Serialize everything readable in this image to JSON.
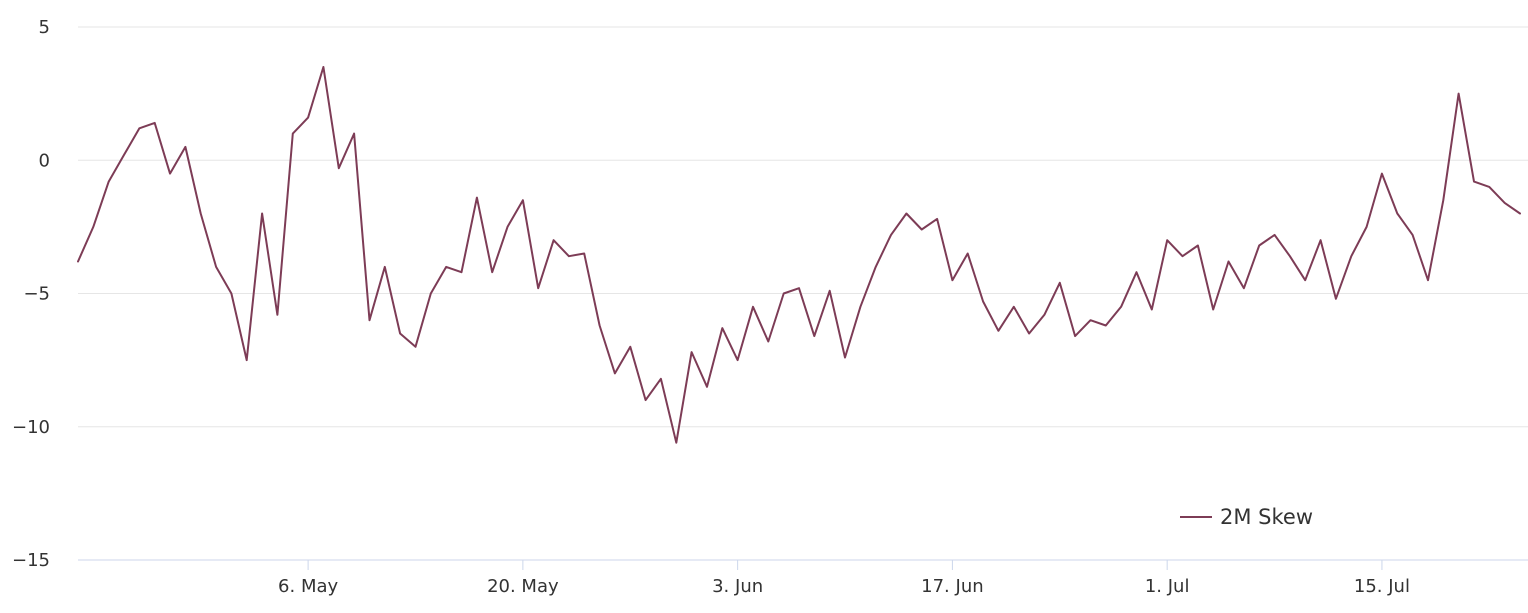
{
  "chart_data": {
    "type": "line",
    "title": "",
    "xlabel": "",
    "ylabel": "",
    "x_range": [
      "2024-04-21",
      "2024-07-24"
    ],
    "ylim": [
      -15,
      5
    ],
    "y_ticks": [
      5,
      0,
      -5,
      -10,
      -15
    ],
    "y_tick_labels": [
      "5",
      "0",
      "−5",
      "−10",
      "−15"
    ],
    "x_ticks": [
      {
        "date": "2024-05-06",
        "label": "6. May"
      },
      {
        "date": "2024-05-20",
        "label": "20. May"
      },
      {
        "date": "2024-06-03",
        "label": "3. Jun"
      },
      {
        "date": "2024-06-17",
        "label": "17. Jun"
      },
      {
        "date": "2024-07-01",
        "label": "1. Jul"
      },
      {
        "date": "2024-07-15",
        "label": "15. Jul"
      }
    ],
    "grid": true,
    "legend": {
      "position": "bottom-right"
    },
    "series": [
      {
        "name": "2M Skew",
        "color": "#7d3c56",
        "points": [
          [
            "2024-04-21",
            -3.8
          ],
          [
            "2024-04-22",
            -2.5
          ],
          [
            "2024-04-23",
            -0.8
          ],
          [
            "2024-04-24",
            0.2
          ],
          [
            "2024-04-25",
            1.2
          ],
          [
            "2024-04-26",
            1.4
          ],
          [
            "2024-04-27",
            -0.5
          ],
          [
            "2024-04-28",
            0.5
          ],
          [
            "2024-04-29",
            -2.0
          ],
          [
            "2024-04-30",
            -4.0
          ],
          [
            "2024-05-01",
            -5.0
          ],
          [
            "2024-05-02",
            -7.5
          ],
          [
            "2024-05-03",
            -2.0
          ],
          [
            "2024-05-04",
            -5.8
          ],
          [
            "2024-05-05",
            1.0
          ],
          [
            "2024-05-06",
            1.6
          ],
          [
            "2024-05-07",
            3.5
          ],
          [
            "2024-05-08",
            -0.3
          ],
          [
            "2024-05-09",
            1.0
          ],
          [
            "2024-05-10",
            -6.0
          ],
          [
            "2024-05-11",
            -4.0
          ],
          [
            "2024-05-12",
            -6.5
          ],
          [
            "2024-05-13",
            -7.0
          ],
          [
            "2024-05-14",
            -5.0
          ],
          [
            "2024-05-15",
            -4.0
          ],
          [
            "2024-05-16",
            -4.2
          ],
          [
            "2024-05-17",
            -1.4
          ],
          [
            "2024-05-18",
            -4.2
          ],
          [
            "2024-05-19",
            -2.5
          ],
          [
            "2024-05-20",
            -1.5
          ],
          [
            "2024-05-21",
            -4.8
          ],
          [
            "2024-05-22",
            -3.0
          ],
          [
            "2024-05-23",
            -3.6
          ],
          [
            "2024-05-24",
            -3.5
          ],
          [
            "2024-05-25",
            -6.2
          ],
          [
            "2024-05-26",
            -8.0
          ],
          [
            "2024-05-27",
            -7.0
          ],
          [
            "2024-05-28",
            -9.0
          ],
          [
            "2024-05-29",
            -8.2
          ],
          [
            "2024-05-30",
            -10.6
          ],
          [
            "2024-05-31",
            -7.2
          ],
          [
            "2024-06-01",
            -8.5
          ],
          [
            "2024-06-02",
            -6.3
          ],
          [
            "2024-06-03",
            -7.5
          ],
          [
            "2024-06-04",
            -5.5
          ],
          [
            "2024-06-05",
            -6.8
          ],
          [
            "2024-06-06",
            -5.0
          ],
          [
            "2024-06-07",
            -4.8
          ],
          [
            "2024-06-08",
            -6.6
          ],
          [
            "2024-06-09",
            -4.9
          ],
          [
            "2024-06-10",
            -7.4
          ],
          [
            "2024-06-11",
            -5.5
          ],
          [
            "2024-06-12",
            -4.0
          ],
          [
            "2024-06-13",
            -2.8
          ],
          [
            "2024-06-14",
            -2.0
          ],
          [
            "2024-06-15",
            -2.6
          ],
          [
            "2024-06-16",
            -2.2
          ],
          [
            "2024-06-17",
            -4.5
          ],
          [
            "2024-06-18",
            -3.5
          ],
          [
            "2024-06-19",
            -5.3
          ],
          [
            "2024-06-20",
            -6.4
          ],
          [
            "2024-06-21",
            -5.5
          ],
          [
            "2024-06-22",
            -6.5
          ],
          [
            "2024-06-23",
            -5.8
          ],
          [
            "2024-06-24",
            -4.6
          ],
          [
            "2024-06-25",
            -6.6
          ],
          [
            "2024-06-26",
            -6.0
          ],
          [
            "2024-06-27",
            -6.2
          ],
          [
            "2024-06-28",
            -5.5
          ],
          [
            "2024-06-29",
            -4.2
          ],
          [
            "2024-06-30",
            -5.6
          ],
          [
            "2024-07-01",
            -3.0
          ],
          [
            "2024-07-02",
            -3.6
          ],
          [
            "2024-07-03",
            -3.2
          ],
          [
            "2024-07-04",
            -5.6
          ],
          [
            "2024-07-05",
            -3.8
          ],
          [
            "2024-07-06",
            -4.8
          ],
          [
            "2024-07-07",
            -3.2
          ],
          [
            "2024-07-08",
            -2.8
          ],
          [
            "2024-07-09",
            -3.6
          ],
          [
            "2024-07-10",
            -4.5
          ],
          [
            "2024-07-11",
            -3.0
          ],
          [
            "2024-07-12",
            -5.2
          ],
          [
            "2024-07-13",
            -3.6
          ],
          [
            "2024-07-14",
            -2.5
          ],
          [
            "2024-07-15",
            -0.5
          ],
          [
            "2024-07-16",
            -2.0
          ],
          [
            "2024-07-17",
            -2.8
          ],
          [
            "2024-07-18",
            -4.5
          ],
          [
            "2024-07-19",
            -1.5
          ],
          [
            "2024-07-20",
            2.5
          ],
          [
            "2024-07-21",
            -0.8
          ],
          [
            "2024-07-22",
            -1.0
          ],
          [
            "2024-07-23",
            -1.6
          ],
          [
            "2024-07-24",
            -2.0
          ]
        ]
      }
    ]
  }
}
